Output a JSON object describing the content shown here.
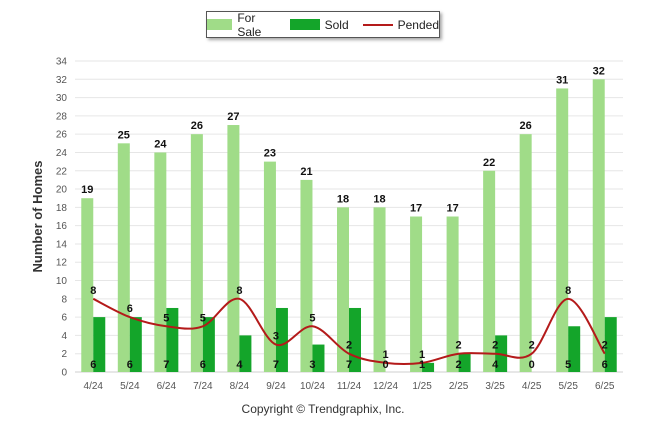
{
  "legend": {
    "for_sale": "For Sale",
    "sold": "Sold",
    "pended": "Pended"
  },
  "copyright": "Copyright © Trendgraphix, Inc.",
  "colors": {
    "for_sale": "#a0dc88",
    "sold": "#14a52a",
    "pended": "#b41a1a",
    "grid": "#e6e6e6",
    "axis_text": "#555555"
  },
  "chart_data": {
    "type": "bar",
    "categories": [
      "4/24",
      "5/24",
      "6/24",
      "7/24",
      "8/24",
      "9/24",
      "10/24",
      "11/24",
      "12/24",
      "1/25",
      "2/25",
      "3/25",
      "4/25",
      "5/25",
      "6/25"
    ],
    "series": [
      {
        "name": "For Sale",
        "type": "bar",
        "values": [
          19,
          25,
          24,
          26,
          27,
          23,
          21,
          18,
          18,
          17,
          17,
          22,
          26,
          31,
          32
        ]
      },
      {
        "name": "Sold",
        "type": "bar",
        "values": [
          6,
          6,
          7,
          6,
          4,
          7,
          3,
          7,
          0,
          1,
          2,
          4,
          0,
          5,
          6
        ]
      },
      {
        "name": "Pended",
        "type": "line",
        "values": [
          8,
          6,
          5,
          5,
          8,
          3,
          5,
          2,
          1,
          1,
          2,
          2,
          2,
          8,
          2
        ]
      }
    ],
    "ylabel": "Number of Homes",
    "xlabel": "",
    "ylim": [
      0,
      34
    ],
    "yticks": [
      0,
      2,
      4,
      6,
      8,
      10,
      12,
      14,
      16,
      18,
      20,
      22,
      24,
      26,
      28,
      30,
      32,
      34
    ],
    "grid": true,
    "legend_position": "top-center"
  }
}
